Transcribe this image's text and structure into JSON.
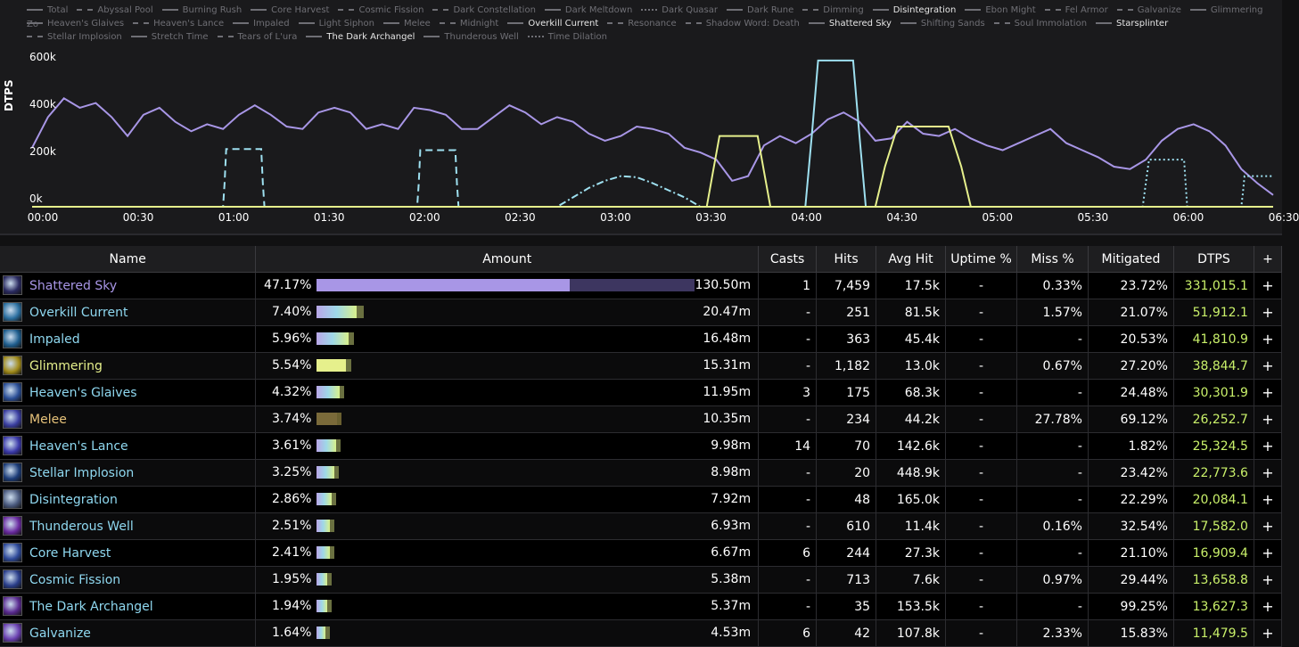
{
  "chart": {
    "y_axis_label": "DTPS",
    "zoom_hint": "Zo",
    "y_ticks": [
      "600k",
      "400k",
      "200k",
      "0k"
    ],
    "x_ticks": [
      "00:00",
      "00:30",
      "01:00",
      "01:30",
      "02:00",
      "02:30",
      "03:00",
      "03:30",
      "04:00",
      "04:30",
      "05:00",
      "05:30",
      "06:00",
      "06:30"
    ],
    "legend": [
      {
        "label": "Total",
        "style": "solid",
        "active": false
      },
      {
        "label": "Abyssal Pool",
        "style": "dashdot",
        "active": false
      },
      {
        "label": "Burning Rush",
        "style": "solid",
        "active": false
      },
      {
        "label": "Core Harvest",
        "style": "solid",
        "active": false
      },
      {
        "label": "Cosmic Fission",
        "style": "dashed",
        "active": false
      },
      {
        "label": "Dark Constellation",
        "style": "dashdot",
        "active": false
      },
      {
        "label": "Dark Meltdown",
        "style": "solid",
        "active": false
      },
      {
        "label": "Dark Quasar",
        "style": "dotted",
        "active": false
      },
      {
        "label": "Dark Rune",
        "style": "solid",
        "active": false
      },
      {
        "label": "Dimming",
        "style": "dashdot",
        "active": false
      },
      {
        "label": "Disintegration",
        "style": "solid",
        "active": true
      },
      {
        "label": "Ebon Might",
        "style": "solid",
        "active": false
      },
      {
        "label": "Fel Armor",
        "style": "dashdot",
        "active": false
      },
      {
        "label": "Galvanize",
        "style": "dashdot",
        "active": false
      },
      {
        "label": "Glimmering",
        "style": "solid",
        "active": false
      },
      {
        "label": "Heaven's Glaives",
        "style": "solid",
        "active": false
      },
      {
        "label": "Heaven's Lance",
        "style": "dashdot",
        "active": false
      },
      {
        "label": "Impaled",
        "style": "solid",
        "active": false
      },
      {
        "label": "Light Siphon",
        "style": "solid",
        "active": false
      },
      {
        "label": "Melee",
        "style": "solid",
        "active": false
      },
      {
        "label": "Midnight",
        "style": "dashed",
        "active": false
      },
      {
        "label": "Overkill Current",
        "style": "solid",
        "active": true
      },
      {
        "label": "Resonance",
        "style": "dashed",
        "active": false
      },
      {
        "label": "Shadow Word: Death",
        "style": "dashed",
        "active": false
      },
      {
        "label": "Shattered Sky",
        "style": "solid",
        "active": true
      },
      {
        "label": "Shifting Sands",
        "style": "solid",
        "active": false
      },
      {
        "label": "Soul Immolation",
        "style": "dashed",
        "active": false
      },
      {
        "label": "Starsplinter",
        "style": "solid",
        "active": true
      },
      {
        "label": "Stellar Implosion",
        "style": "dashdot",
        "active": false
      },
      {
        "label": "Stretch Time",
        "style": "solid",
        "active": false
      },
      {
        "label": "Tears of L'ura",
        "style": "dashed",
        "active": false
      },
      {
        "label": "The Dark Archangel",
        "style": "solid",
        "active": true
      },
      {
        "label": "Thunderous Well",
        "style": "solid",
        "active": false
      },
      {
        "label": "Time Dilation",
        "style": "dotted",
        "active": false
      }
    ]
  },
  "chart_data": {
    "type": "line",
    "xlabel": "",
    "ylabel": "DTPS",
    "xlim_seconds": [
      0,
      390
    ],
    "ylim": [
      0,
      650000
    ],
    "series": [
      {
        "name": "Shattered Sky",
        "color": "#a896e6",
        "style": "solid",
        "x": [
          0,
          5,
          10,
          15,
          20,
          25,
          30,
          35,
          40,
          45,
          50,
          55,
          60,
          65,
          70,
          75,
          80,
          85,
          90,
          95,
          100,
          105,
          110,
          115,
          120,
          125,
          130,
          135,
          140,
          145,
          150,
          155,
          160,
          165,
          170,
          175,
          180,
          185,
          190,
          195,
          200,
          205,
          210,
          215,
          220,
          225,
          230,
          235,
          240,
          245,
          250,
          255,
          260,
          265,
          270,
          275,
          280,
          285,
          290,
          295,
          300,
          305,
          310,
          315,
          320,
          325,
          330,
          335,
          340,
          345,
          350,
          355,
          360,
          365,
          370,
          375,
          380,
          385,
          390
        ],
        "y": [
          250000,
          380000,
          460000,
          420000,
          440000,
          380000,
          300000,
          390000,
          420000,
          360000,
          320000,
          350000,
          330000,
          390000,
          430000,
          390000,
          340000,
          330000,
          400000,
          420000,
          400000,
          330000,
          350000,
          330000,
          420000,
          410000,
          390000,
          330000,
          330000,
          380000,
          430000,
          400000,
          350000,
          380000,
          360000,
          310000,
          280000,
          300000,
          340000,
          330000,
          310000,
          250000,
          230000,
          200000,
          110000,
          130000,
          260000,
          300000,
          270000,
          310000,
          370000,
          400000,
          360000,
          280000,
          290000,
          360000,
          310000,
          300000,
          330000,
          290000,
          260000,
          240000,
          270000,
          300000,
          330000,
          270000,
          240000,
          210000,
          170000,
          160000,
          200000,
          280000,
          330000,
          350000,
          320000,
          260000,
          160000,
          100000,
          50000
        ]
      },
      {
        "name": "Overkill Current",
        "color": "#9ee0f0",
        "style": "dashed",
        "x": [
          0,
          60,
          60.5,
          61,
          72,
          72.5,
          73,
          121,
          121.5,
          122,
          133,
          133.5,
          134,
          390
        ],
        "y": [
          0,
          0,
          100000,
          245000,
          245000,
          100000,
          0,
          0,
          100000,
          240000,
          240000,
          100000,
          0,
          0
        ]
      },
      {
        "name": "Dark Quasar",
        "color": "#9ee0f0",
        "style": "dashdot",
        "x": [
          0,
          165,
          170,
          175,
          180,
          185,
          190,
          195,
          200,
          205,
          210,
          390
        ],
        "y": [
          0,
          0,
          40000,
          80000,
          110000,
          130000,
          125000,
          100000,
          70000,
          40000,
          0,
          0
        ]
      },
      {
        "name": "Disintegration",
        "color": "#9ee0f0",
        "style": "solid",
        "x": [
          0,
          243,
          245,
          247,
          258,
          260,
          262,
          390
        ],
        "y": [
          0,
          0,
          300000,
          620000,
          620000,
          300000,
          0,
          0
        ]
      },
      {
        "name": "Glimmering",
        "color": "#e6f08c",
        "style": "solid",
        "x": [
          0,
          212,
          214,
          216,
          228,
          230,
          232,
          265,
          268,
          272,
          288,
          292,
          295,
          390
        ],
        "y": [
          0,
          0,
          150000,
          300000,
          300000,
          150000,
          0,
          0,
          170000,
          340000,
          340000,
          170000,
          0,
          0
        ]
      },
      {
        "name": "Time Dilation",
        "color": "#9ee0f0",
        "style": "dotted",
        "x": [
          0,
          349,
          350,
          351,
          362,
          362.5,
          363,
          380,
          380.5,
          381,
          390
        ],
        "y": [
          0,
          0,
          100000,
          200000,
          200000,
          100000,
          0,
          0,
          60000,
          130000,
          130000
        ]
      },
      {
        "name": "Total",
        "color": "#e6f08c",
        "style": "solid",
        "x": [
          0,
          390
        ],
        "y": [
          0,
          0
        ]
      }
    ]
  },
  "table": {
    "headers": [
      "Name",
      "Amount",
      "Casts",
      "Hits",
      "Avg Hit",
      "Uptime %",
      "Miss %",
      "Mitigated",
      "DTPS",
      "+"
    ],
    "rows": [
      {
        "name": "Shattered Sky",
        "color": "#a896e6",
        "icon": "shattered-sky-icon",
        "icon_bg": "#2a2a60",
        "pct": "47.17%",
        "frac": 0.4717,
        "bar": "purple",
        "amount": "130.50m",
        "casts": "1",
        "hits": "7,459",
        "avg": "17.5k",
        "uptime": "-",
        "miss": "0.33%",
        "mit": "23.72%",
        "dtps": "331,015.1",
        "plus": "+"
      },
      {
        "name": "Overkill Current",
        "color": "#8fd8f0",
        "icon": "overkill-current-icon",
        "icon_bg": "#2b6fa0",
        "pct": "7.40%",
        "frac": 0.074,
        "bar": "multi",
        "amount": "20.47m",
        "casts": "-",
        "hits": "251",
        "avg": "81.5k",
        "uptime": "-",
        "miss": "1.57%",
        "mit": "21.07%",
        "dtps": "51,912.1",
        "plus": "+"
      },
      {
        "name": "Impaled",
        "color": "#8fd8f0",
        "icon": "impaled-icon",
        "icon_bg": "#1f5e8e",
        "pct": "5.96%",
        "frac": 0.0596,
        "bar": "multi",
        "amount": "16.48m",
        "casts": "-",
        "hits": "363",
        "avg": "45.4k",
        "uptime": "-",
        "miss": "-",
        "mit": "20.53%",
        "dtps": "41,810.9",
        "plus": "+"
      },
      {
        "name": "Glimmering",
        "color": "#e6f08c",
        "icon": "glimmering-icon",
        "icon_bg": "#a08a1a",
        "pct": "5.54%",
        "frac": 0.0554,
        "bar": "yellow",
        "amount": "15.31m",
        "casts": "-",
        "hits": "1,182",
        "avg": "13.0k",
        "uptime": "-",
        "miss": "0.67%",
        "mit": "27.20%",
        "dtps": "38,844.7",
        "plus": "+"
      },
      {
        "name": "Heaven's Glaives",
        "color": "#8fd8f0",
        "icon": "heavens-glaives-icon",
        "icon_bg": "#2a4e96",
        "pct": "4.32%",
        "frac": 0.0432,
        "bar": "multi",
        "amount": "11.95m",
        "casts": "3",
        "hits": "175",
        "avg": "68.3k",
        "uptime": "-",
        "miss": "-",
        "mit": "24.48%",
        "dtps": "30,301.9",
        "plus": "+"
      },
      {
        "name": "Melee",
        "color": "#e6c27a",
        "icon": "melee-icon",
        "icon_bg": "#3a3ea0",
        "pct": "3.74%",
        "frac": 0.0374,
        "bar": "brown",
        "amount": "10.35m",
        "casts": "-",
        "hits": "234",
        "avg": "44.2k",
        "uptime": "-",
        "miss": "27.78%",
        "mit": "69.12%",
        "dtps": "26,252.7",
        "plus": "+"
      },
      {
        "name": "Heaven's Lance",
        "color": "#8fd8f0",
        "icon": "heavens-lance-icon",
        "icon_bg": "#3a38a8",
        "pct": "3.61%",
        "frac": 0.0361,
        "bar": "multi",
        "amount": "9.98m",
        "casts": "14",
        "hits": "70",
        "avg": "142.6k",
        "uptime": "-",
        "miss": "-",
        "mit": "1.82%",
        "dtps": "25,324.5",
        "plus": "+"
      },
      {
        "name": "Stellar Implosion",
        "color": "#8fd8f0",
        "icon": "stellar-implosion-icon",
        "icon_bg": "#1c3c78",
        "pct": "3.25%",
        "frac": 0.0325,
        "bar": "multi",
        "amount": "8.98m",
        "casts": "-",
        "hits": "20",
        "avg": "448.9k",
        "uptime": "-",
        "miss": "-",
        "mit": "23.42%",
        "dtps": "22,773.6",
        "plus": "+"
      },
      {
        "name": "Disintegration",
        "color": "#8fd8f0",
        "icon": "disintegration-icon",
        "icon_bg": "#4a5a7e",
        "pct": "2.86%",
        "frac": 0.0286,
        "bar": "multi",
        "amount": "7.92m",
        "casts": "-",
        "hits": "48",
        "avg": "165.0k",
        "uptime": "-",
        "miss": "-",
        "mit": "22.29%",
        "dtps": "20,084.1",
        "plus": "+"
      },
      {
        "name": "Thunderous Well",
        "color": "#8fd8f0",
        "icon": "thunderous-well-icon",
        "icon_bg": "#6a2aa0",
        "pct": "2.51%",
        "frac": 0.0251,
        "bar": "multi",
        "amount": "6.93m",
        "casts": "-",
        "hits": "610",
        "avg": "11.4k",
        "uptime": "-",
        "miss": "0.16%",
        "mit": "32.54%",
        "dtps": "17,582.0",
        "plus": "+"
      },
      {
        "name": "Core Harvest",
        "color": "#8fd8f0",
        "icon": "core-harvest-icon",
        "icon_bg": "#2e4a9a",
        "pct": "2.41%",
        "frac": 0.0241,
        "bar": "multi",
        "amount": "6.67m",
        "casts": "6",
        "hits": "244",
        "avg": "27.3k",
        "uptime": "-",
        "miss": "-",
        "mit": "21.10%",
        "dtps": "16,909.4",
        "plus": "+"
      },
      {
        "name": "Cosmic Fission",
        "color": "#8fd8f0",
        "icon": "cosmic-fission-icon",
        "icon_bg": "#2a3e8a",
        "pct": "1.95%",
        "frac": 0.0195,
        "bar": "multi",
        "amount": "5.38m",
        "casts": "-",
        "hits": "713",
        "avg": "7.6k",
        "uptime": "-",
        "miss": "0.97%",
        "mit": "29.44%",
        "dtps": "13,658.8",
        "plus": "+"
      },
      {
        "name": "The Dark Archangel",
        "color": "#8fd8f0",
        "icon": "dark-archangel-icon",
        "icon_bg": "#5a2a90",
        "pct": "1.94%",
        "frac": 0.0194,
        "bar": "multi",
        "amount": "5.37m",
        "casts": "-",
        "hits": "35",
        "avg": "153.5k",
        "uptime": "-",
        "miss": "-",
        "mit": "99.25%",
        "dtps": "13,627.3",
        "plus": "+"
      },
      {
        "name": "Galvanize",
        "color": "#8fd8f0",
        "icon": "galvanize-icon",
        "icon_bg": "#6a40b0",
        "pct": "1.64%",
        "frac": 0.0164,
        "bar": "multi",
        "amount": "4.53m",
        "casts": "6",
        "hits": "42",
        "avg": "107.8k",
        "uptime": "-",
        "miss": "2.33%",
        "mit": "15.83%",
        "dtps": "11,479.5",
        "plus": "+"
      }
    ]
  }
}
